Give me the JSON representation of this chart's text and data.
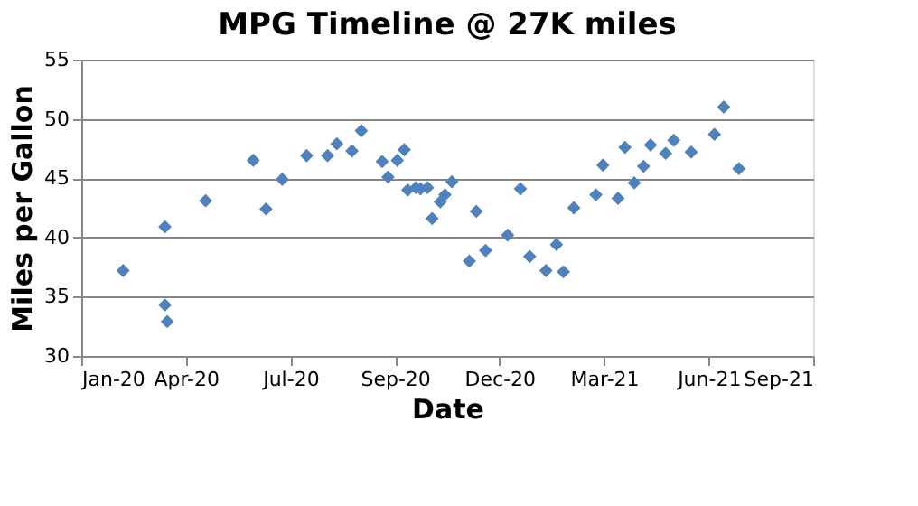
{
  "chart_data": {
    "type": "scatter",
    "title": "MPG Timeline @ 27K miles",
    "xlabel": "Date",
    "ylabel": "Miles per Gallon",
    "x": [
      "2020-02-08",
      "2020-03-15",
      "2020-03-15",
      "2020-03-17",
      "2020-04-19",
      "2020-05-30",
      "2020-06-10",
      "2020-06-24",
      "2020-07-15",
      "2020-08-02",
      "2020-08-10",
      "2020-08-23",
      "2020-08-31",
      "2020-09-18",
      "2020-09-23",
      "2020-10-01",
      "2020-10-07",
      "2020-10-10",
      "2020-10-17",
      "2020-10-21",
      "2020-10-27",
      "2020-10-31",
      "2020-11-07",
      "2020-11-11",
      "2020-11-17",
      "2020-12-02",
      "2020-12-08",
      "2020-12-16",
      "2021-01-04",
      "2021-01-15",
      "2021-01-23",
      "2021-02-06",
      "2021-02-15",
      "2021-02-21",
      "2021-03-02",
      "2021-03-21",
      "2021-03-27",
      "2021-04-09",
      "2021-04-15",
      "2021-04-23",
      "2021-05-01",
      "2021-05-07",
      "2021-05-20",
      "2021-05-27",
      "2021-06-11",
      "2021-07-01",
      "2021-07-09",
      "2021-07-22"
    ],
    "series": [
      {
        "color": "#4f81bd",
        "values": [
          37.2,
          40.9,
          34.3,
          32.9,
          43.1,
          46.5,
          42.4,
          44.9,
          46.9,
          46.9,
          47.9,
          47.3,
          49.0,
          46.4,
          45.1,
          46.5,
          47.4,
          44.0,
          44.2,
          44.1,
          44.2,
          41.6,
          43.0,
          43.6,
          44.7,
          38.0,
          42.2,
          38.9,
          40.2,
          44.1,
          38.4,
          37.2,
          39.4,
          37.1,
          42.5,
          43.6,
          46.1,
          43.3,
          47.6,
          44.6,
          46.0,
          47.8,
          47.1,
          48.2,
          47.2,
          48.7,
          51.0,
          45.8
        ]
      }
    ],
    "xlim": [
      "2020-01-03",
      "2021-09-24"
    ],
    "xticks": [
      {
        "value": "2020-01-03",
        "label": "Jan-20"
      },
      {
        "value": "2020-04-02",
        "label": "Apr-20"
      },
      {
        "value": "2020-07-01",
        "label": "Jul-20"
      },
      {
        "value": "2020-09-29",
        "label": "Sep-20"
      },
      {
        "value": "2020-12-28",
        "label": "Dec-20"
      },
      {
        "value": "2021-03-28",
        "label": "Mar-21"
      },
      {
        "value": "2021-06-26",
        "label": "Jun-21"
      },
      {
        "value": "2021-09-24",
        "label": "Sep-21"
      }
    ],
    "ylim": [
      30,
      55
    ],
    "yticks": [
      30,
      35,
      40,
      45,
      50,
      55
    ],
    "grid": "y",
    "legend": false,
    "marker": "diamond"
  }
}
